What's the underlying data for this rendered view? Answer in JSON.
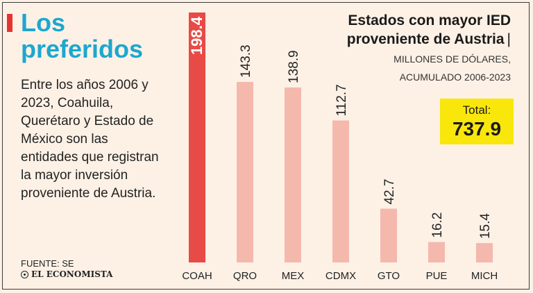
{
  "headline": {
    "line1": "Los",
    "line2": "preferidos"
  },
  "description": "Entre los años 2006 y 2023, Coahuila, Querétaro y Estado de México son las entidades que registran la mayor inversión proveniente de Austria.",
  "source": "FUENTE: SE",
  "brand": "EL ECONOMISTA",
  "total": {
    "label": "Total:",
    "value": "737.9"
  },
  "colors": {
    "highlight": "#e84a45",
    "bar": "#f5b8ad",
    "accent": "#e5352e",
    "headline": "#1ca7cf",
    "total_bg": "#f9e70b"
  },
  "chart_data": {
    "type": "bar",
    "title": "Estados con mayor IED proveniente de Austria",
    "subtitle": "MILLONES DE DÓLARES, ACUMULADO 2006-2023",
    "categories": [
      "COAH",
      "QRO",
      "MEX",
      "CDMX",
      "GTO",
      "PUE",
      "MICH"
    ],
    "values": [
      198.4,
      143.3,
      138.9,
      112.7,
      42.7,
      16.2,
      15.4
    ],
    "value_labels": [
      "198.4",
      "143.3",
      "138.9",
      "112.7",
      "42.7",
      "16.2",
      "15.4"
    ],
    "highlight_index": 0,
    "ylim": [
      0,
      198.4
    ],
    "xlabel": "",
    "ylabel": "",
    "grid": false,
    "legend": "none"
  }
}
